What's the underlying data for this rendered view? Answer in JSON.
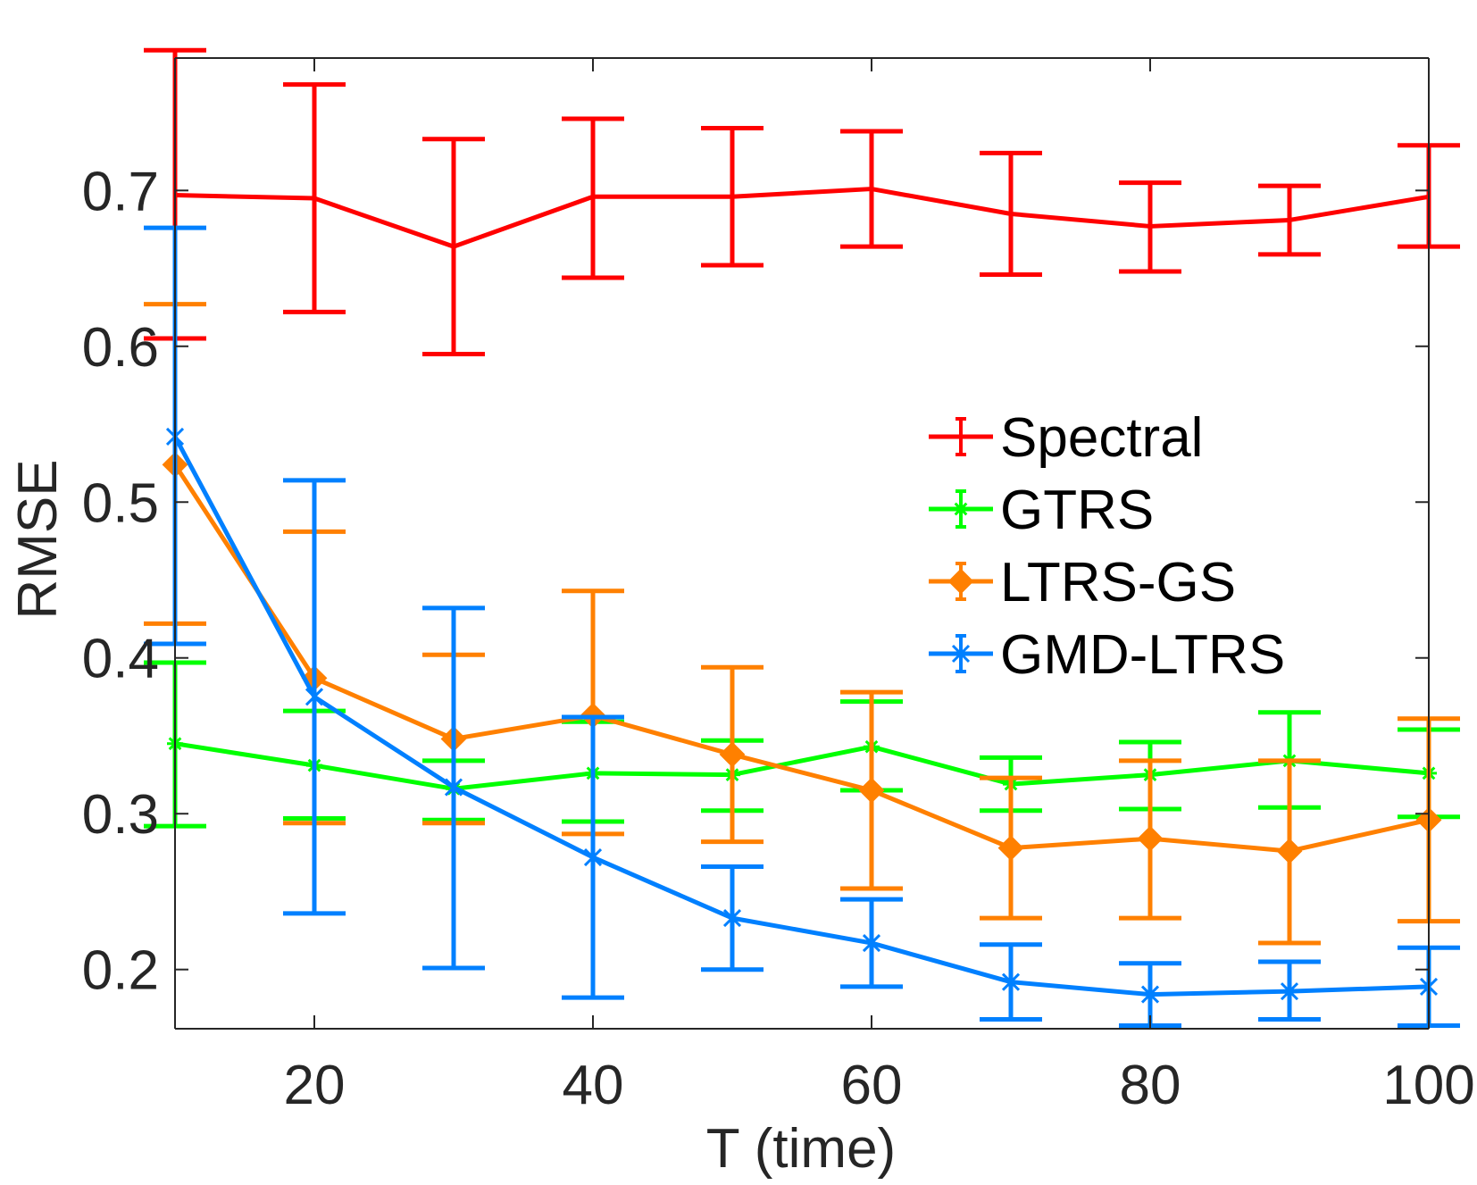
{
  "chart_data": {
    "type": "line",
    "title": "",
    "xlabel": "T (time)",
    "ylabel": "RMSE",
    "xlim": [
      10,
      100
    ],
    "ylim": [
      0.162,
      0.785
    ],
    "xticks": [
      20,
      40,
      60,
      80,
      100
    ],
    "xtick_labels": [
      "20",
      "40",
      "60",
      "80",
      "100"
    ],
    "yticks": [
      0.2,
      0.3,
      0.4,
      0.5,
      0.6,
      0.7
    ],
    "ytick_labels": [
      "0.2",
      "0.3",
      "0.4",
      "0.5",
      "0.6",
      "0.7"
    ],
    "grid": false,
    "legend_position": "center-right",
    "x": [
      10,
      20,
      30,
      40,
      50,
      60,
      70,
      80,
      90,
      100
    ],
    "series": [
      {
        "name": "Spectral",
        "color": "#ff0000",
        "marker": "none",
        "values": [
          0.697,
          0.695,
          0.664,
          0.696,
          0.696,
          0.701,
          0.685,
          0.677,
          0.681,
          0.696
        ],
        "err_low": [
          0.605,
          0.622,
          0.595,
          0.644,
          0.652,
          0.664,
          0.646,
          0.648,
          0.659,
          0.664
        ],
        "err_high": [
          0.79,
          0.768,
          0.733,
          0.746,
          0.74,
          0.738,
          0.724,
          0.705,
          0.703,
          0.729
        ]
      },
      {
        "name": "GTRS",
        "color": "#00ff00",
        "marker": "asterisk",
        "values": [
          0.345,
          0.331,
          0.316,
          0.326,
          0.325,
          0.343,
          0.319,
          0.325,
          0.334,
          0.326
        ],
        "err_low": [
          0.292,
          0.297,
          0.296,
          0.295,
          0.302,
          0.315,
          0.302,
          0.303,
          0.304,
          0.298
        ],
        "err_high": [
          0.397,
          0.366,
          0.334,
          0.359,
          0.347,
          0.372,
          0.336,
          0.346,
          0.365,
          0.354
        ]
      },
      {
        "name": "LTRS-GS",
        "color": "#ff8000",
        "marker": "diamond",
        "values": [
          0.524,
          0.387,
          0.348,
          0.363,
          0.338,
          0.315,
          0.278,
          0.284,
          0.276,
          0.296
        ],
        "err_low": [
          0.422,
          0.294,
          0.294,
          0.287,
          0.282,
          0.252,
          0.233,
          0.233,
          0.217,
          0.231
        ],
        "err_high": [
          0.627,
          0.481,
          0.402,
          0.443,
          0.394,
          0.378,
          0.323,
          0.334,
          0.334,
          0.361
        ]
      },
      {
        "name": "GMD-LTRS",
        "color": "#0080ff",
        "marker": "star",
        "values": [
          0.542,
          0.375,
          0.317,
          0.272,
          0.233,
          0.217,
          0.192,
          0.184,
          0.186,
          0.189
        ],
        "err_low": [
          0.409,
          0.236,
          0.201,
          0.182,
          0.2,
          0.189,
          0.168,
          0.164,
          0.168,
          0.164
        ],
        "err_high": [
          0.676,
          0.514,
          0.432,
          0.362,
          0.266,
          0.245,
          0.216,
          0.204,
          0.205,
          0.214
        ]
      }
    ]
  }
}
